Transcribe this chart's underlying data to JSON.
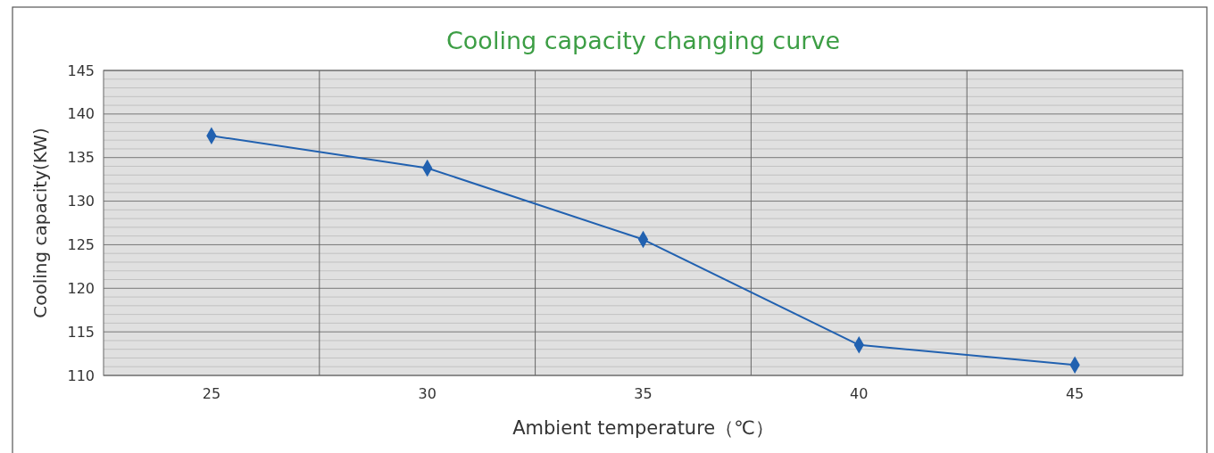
{
  "chart_data": {
    "type": "line",
    "title": "Cooling capacity changing curve",
    "xlabel": "Ambient temperature（℃）",
    "ylabel": "Cooling capacity(KW)",
    "categories": [
      "25",
      "30",
      "35",
      "40",
      "45"
    ],
    "series": [
      {
        "color": "#2161b0",
        "values": [
          137.5,
          133.8,
          125.6,
          113.5,
          111.2
        ]
      }
    ],
    "ylim": [
      110,
      145
    ],
    "yticks": [
      110,
      {
        "value": 111,
        "label": null
      },
      {
        "value": 112,
        "label": null
      },
      {
        "value": 113,
        "label": null
      },
      {
        "value": 114,
        "label": null
      },
      115,
      {
        "value": 116,
        "label": null
      },
      {
        "value": 117,
        "label": null
      },
      {
        "value": 118,
        "label": null
      },
      {
        "value": 119,
        "label": null
      },
      120,
      {
        "value": 121,
        "label": null
      },
      {
        "value": 122,
        "label": null
      },
      {
        "value": 123,
        "label": null
      },
      {
        "value": 124,
        "label": null
      },
      125,
      {
        "value": 126,
        "label": null
      },
      {
        "value": 127,
        "label": null
      },
      {
        "value": 128,
        "label": null
      },
      {
        "value": 129,
        "label": null
      },
      130,
      {
        "value": 131,
        "label": null
      },
      {
        "value": 132,
        "label": null
      },
      {
        "value": 133,
        "label": null
      },
      {
        "value": 134,
        "label": null
      },
      135,
      {
        "value": 136,
        "label": null
      },
      {
        "value": 137,
        "label": null
      },
      {
        "value": 138,
        "label": null
      },
      {
        "value": 139,
        "label": null
      },
      140,
      {
        "value": 141,
        "label": null
      },
      {
        "value": 142,
        "label": null
      },
      {
        "value": 143,
        "label": null
      },
      {
        "value": 144,
        "label": null
      },
      145
    ],
    "grid": true,
    "marker": "diamond",
    "line_style": "solid"
  }
}
